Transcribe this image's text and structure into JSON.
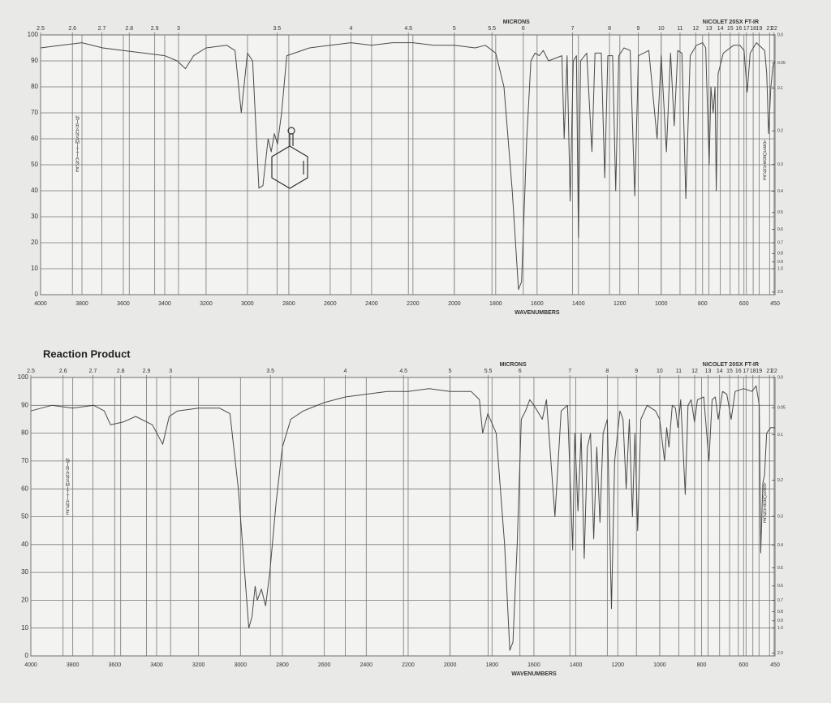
{
  "chart_data": [
    {
      "type": "line",
      "top_label": "MICRONS",
      "instrument": "NICOLET 20SX FT-IR",
      "x_label": "WAVENUMBERS",
      "y_label": "%TRANSMITTANCE",
      "y2_label": "ABSORBANCE",
      "color": "#4a4a4a",
      "grid": true,
      "xlim": [
        4000,
        450
      ],
      "ylim": [
        0,
        100
      ],
      "xticks": [
        4000,
        3800,
        3600,
        3400,
        3200,
        3000,
        2800,
        2600,
        2400,
        2200,
        2000,
        1800,
        1600,
        1400,
        1200,
        1000,
        800,
        600,
        450
      ],
      "yticks": [
        0,
        10,
        20,
        30,
        40,
        50,
        60,
        70,
        80,
        90,
        100
      ],
      "microns_ticks": [
        2.5,
        2.6,
        2.7,
        2.8,
        2.9,
        3,
        3.5,
        4,
        4.5,
        5,
        5.5,
        6,
        7,
        8,
        9,
        10,
        11,
        12,
        13,
        14,
        15,
        16,
        17,
        18,
        19,
        21,
        22
      ],
      "y2ticks": [
        {
          "value": 0,
          "label": "0.0"
        },
        0.05,
        0.1,
        0.2,
        0.3,
        0.4,
        0.5,
        0.6,
        0.7,
        0.8,
        0.9,
        {
          "value": 1,
          "label": "1.0"
        },
        {
          "value": 2,
          "label": "2.0"
        }
      ],
      "x": [
        4000,
        3900,
        3800,
        3700,
        3600,
        3500,
        3400,
        3340,
        3300,
        3260,
        3200,
        3100,
        3060,
        3030,
        3000,
        2975,
        2945,
        2925,
        2900,
        2885,
        2870,
        2855,
        2835,
        2810,
        2700,
        2600,
        2500,
        2400,
        2300,
        2200,
        2100,
        2000,
        1900,
        1850,
        1800,
        1760,
        1720,
        1690,
        1675,
        1650,
        1630,
        1610,
        1590,
        1570,
        1545,
        1480,
        1469,
        1455,
        1440,
        1425,
        1410,
        1400,
        1390,
        1360,
        1335,
        1320,
        1290,
        1273,
        1258,
        1235,
        1220,
        1205,
        1180,
        1150,
        1128,
        1110,
        1060,
        1020,
        1000,
        975,
        955,
        937,
        920,
        900,
        881,
        860,
        830,
        800,
        785,
        768,
        760,
        749,
        740,
        734,
        725,
        700,
        650,
        620,
        600,
        584,
        570,
        540,
        500,
        490,
        481,
        470,
        460,
        450
      ],
      "values": [
        95,
        96,
        97,
        95,
        94,
        93,
        92,
        90,
        87,
        92,
        95,
        96,
        94,
        70,
        93,
        90,
        41,
        42,
        60,
        55,
        62,
        58,
        70,
        92,
        95,
        96,
        97,
        96,
        97,
        97,
        96,
        96,
        95,
        96,
        93,
        80,
        40,
        2,
        5,
        60,
        90,
        93,
        92,
        94,
        90,
        92,
        60,
        92,
        36,
        90,
        92,
        22,
        90,
        93,
        55,
        93,
        93,
        45,
        92,
        92,
        40,
        92,
        95,
        94,
        38,
        92,
        94,
        60,
        92,
        55,
        93,
        65,
        94,
        93,
        37,
        92,
        96,
        97,
        95,
        50,
        80,
        70,
        80,
        40,
        85,
        93,
        96,
        96,
        94,
        78,
        93,
        97,
        94,
        85,
        62,
        80,
        88,
        90
      ]
    },
    {
      "type": "line",
      "title": "Reaction Product",
      "top_label": "MICRONS",
      "instrument": "NICOLET 20SX FT-IR",
      "x_label": "WAVENUMBERS",
      "y_label": "%TRANSMITTANCE",
      "y2_label": "ABSORBANCE",
      "color": "#4a4a4a",
      "grid": true,
      "xlim": [
        4000,
        450
      ],
      "ylim": [
        0,
        100
      ],
      "xticks": [
        4000,
        3800,
        3600,
        3400,
        3200,
        3000,
        2800,
        2600,
        2400,
        2200,
        2000,
        1800,
        1600,
        1400,
        1200,
        1000,
        800,
        600,
        450
      ],
      "yticks": [
        0,
        10,
        20,
        30,
        40,
        50,
        60,
        70,
        80,
        90,
        100
      ],
      "microns_ticks": [
        2.5,
        2.6,
        2.7,
        2.8,
        2.9,
        3,
        3.5,
        4,
        4.5,
        5,
        5.5,
        6,
        7,
        8,
        9,
        10,
        11,
        12,
        13,
        14,
        15,
        16,
        17,
        18,
        19,
        21,
        22
      ],
      "y2ticks": [
        {
          "value": 0,
          "label": "0.0"
        },
        0.05,
        0.1,
        0.2,
        0.3,
        0.4,
        0.5,
        0.6,
        0.7,
        0.8,
        0.9,
        {
          "value": 1,
          "label": "1.0"
        },
        {
          "value": 2,
          "label": "2.0"
        }
      ],
      "x": [
        4000,
        3900,
        3800,
        3700,
        3650,
        3620,
        3560,
        3500,
        3420,
        3371,
        3340,
        3300,
        3200,
        3100,
        3050,
        3010,
        2960,
        2945,
        2930,
        2920,
        2900,
        2880,
        2860,
        2830,
        2800,
        2760,
        2700,
        2600,
        2500,
        2400,
        2300,
        2200,
        2100,
        2000,
        1900,
        1860,
        1845,
        1820,
        1780,
        1740,
        1715,
        1700,
        1680,
        1660,
        1640,
        1620,
        1600,
        1560,
        1540,
        1500,
        1470,
        1440,
        1415,
        1405,
        1390,
        1375,
        1360,
        1345,
        1330,
        1315,
        1300,
        1285,
        1270,
        1250,
        1230,
        1215,
        1190,
        1175,
        1160,
        1145,
        1130,
        1118,
        1105,
        1090,
        1060,
        1020,
        1000,
        977,
        967,
        956,
        940,
        925,
        913,
        900,
        878,
        865,
        850,
        834,
        820,
        790,
        765,
        750,
        735,
        721,
        700,
        680,
        659,
        640,
        600,
        560,
        540,
        525,
        518,
        508,
        500,
        490,
        470,
        450
      ],
      "values": [
        88,
        90,
        89,
        90,
        88,
        83,
        84,
        86,
        83,
        76,
        86,
        88,
        89,
        89,
        87,
        60,
        10,
        14,
        25,
        20,
        24,
        18,
        30,
        55,
        75,
        85,
        88,
        91,
        93,
        94,
        95,
        95,
        96,
        95,
        95,
        92,
        80,
        87,
        80,
        40,
        2,
        5,
        40,
        85,
        88,
        92,
        90,
        85,
        92,
        50,
        88,
        90,
        38,
        80,
        52,
        80,
        35,
        75,
        80,
        42,
        75,
        48,
        80,
        85,
        17,
        70,
        88,
        85,
        60,
        85,
        50,
        80,
        45,
        85,
        90,
        88,
        85,
        70,
        82,
        75,
        90,
        89,
        82,
        92,
        58,
        90,
        92,
        84,
        92,
        93,
        70,
        92,
        93,
        85,
        95,
        94,
        85,
        95,
        96,
        95,
        97,
        90,
        37,
        62,
        65,
        80,
        82,
        82
      ]
    }
  ]
}
